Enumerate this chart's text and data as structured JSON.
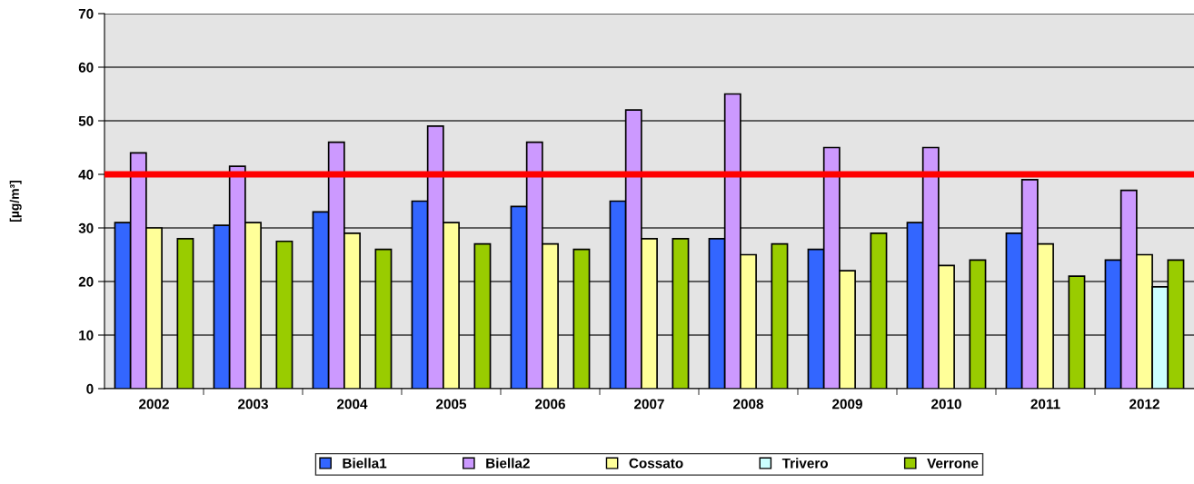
{
  "chart_data": {
    "type": "bar",
    "ylabel": "[µg/m³]",
    "categories": [
      "2002",
      "2003",
      "2004",
      "2005",
      "2006",
      "2007",
      "2008",
      "2009",
      "2010",
      "2011",
      "2012"
    ],
    "series": [
      {
        "name": "Biella1",
        "color": "#3366ff",
        "values": [
          31,
          30.5,
          33,
          35,
          34,
          35,
          28,
          26,
          31,
          29,
          24
        ]
      },
      {
        "name": "Biella2",
        "color": "#cc99ff",
        "values": [
          44,
          41.5,
          46,
          49,
          46,
          52,
          55,
          45,
          45,
          39,
          37
        ]
      },
      {
        "name": "Cossato",
        "color": "#ffff99",
        "values": [
          30,
          31,
          29,
          31,
          27,
          28,
          25,
          22,
          23,
          27,
          25
        ]
      },
      {
        "name": "Trivero",
        "color": "#ccffff",
        "values": [
          null,
          null,
          null,
          null,
          null,
          null,
          null,
          null,
          null,
          null,
          19
        ]
      },
      {
        "name": "Verrone",
        "color": "#99cc00",
        "values": [
          28,
          27.5,
          26,
          27,
          26,
          28,
          27,
          29,
          24,
          21,
          24
        ]
      }
    ],
    "ylim": [
      0,
      70
    ],
    "yticks": [
      0,
      10,
      20,
      30,
      40,
      50,
      60,
      70
    ],
    "ref_lines": [
      {
        "axis": "y",
        "value": 40,
        "color": "#ff0000"
      }
    ],
    "grid": "y",
    "legend": "bottom"
  }
}
